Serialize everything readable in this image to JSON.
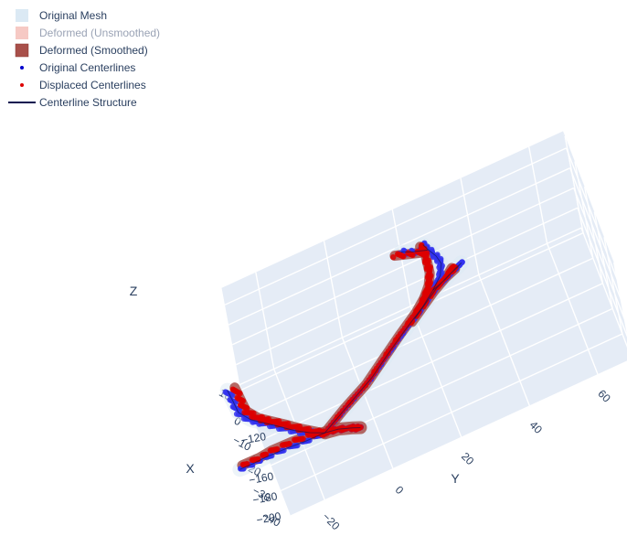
{
  "chart_data": {
    "type": "scatter3d",
    "legend": {
      "placement": "top-left",
      "entries": [
        {
          "name": "Original Mesh",
          "color": "#dbe9f4",
          "symbol": "square",
          "dimmed": false
        },
        {
          "name": "Deformed (Unsmoothed)",
          "color": "#f6c9c4",
          "symbol": "square",
          "dimmed": true
        },
        {
          "name": "Deformed (Smoothed)",
          "color": "#a8504a",
          "symbol": "square",
          "dimmed": false
        },
        {
          "name": "Original Centerlines",
          "color": "#0000cc",
          "symbol": "dot",
          "dimmed": false
        },
        {
          "name": "Displaced Centerlines",
          "color": "#dd0000",
          "symbol": "dot",
          "dimmed": false
        },
        {
          "name": "Centerline Structure",
          "color": "#0a1450",
          "symbol": "line",
          "dimmed": false
        }
      ]
    },
    "axes": {
      "x": {
        "title": "X",
        "ticks": [
          "−40",
          "−30",
          "−20",
          "−10",
          "0",
          "10"
        ]
      },
      "y": {
        "title": "Y",
        "ticks": [
          "−20",
          "0",
          "20",
          "40",
          "60"
        ]
      },
      "z": {
        "title": "Z",
        "ticks": [
          "−120",
          "−140",
          "−160",
          "−180",
          "−200"
        ]
      }
    },
    "scene": {
      "background": "#e5ecf6",
      "grid": true
    },
    "series": [
      {
        "name": "Original Centerlines",
        "color": "#3333ee",
        "branches": [
          [
            [
              -20,
              -38,
              -112
            ],
            [
              -20,
              -37,
              -125
            ],
            [
              -19,
              -36,
              -140
            ],
            [
              -19,
              -33,
              -152
            ],
            [
              -18,
              -30,
              -162
            ],
            [
              -18,
              -26,
              -172
            ],
            [
              -19,
              -22,
              -180
            ],
            [
              -20,
              -18,
              -186
            ],
            [
              -21,
              -14,
              -190
            ]
          ],
          [
            [
              -21,
              -14,
              -190
            ],
            [
              -23,
              -20,
              -184
            ],
            [
              -25,
              -26,
              -177
            ],
            [
              -27,
              -32,
              -171
            ],
            [
              -29,
              -36,
              -166
            ],
            [
              -30,
              -40,
              -163
            ]
          ],
          [
            [
              -21,
              -14,
              -190
            ],
            [
              -20,
              -10,
              -195
            ],
            [
              -20,
              -6,
              -200
            ],
            [
              -20,
              -4,
              -203
            ]
          ],
          [
            [
              -21,
              -14,
              -190
            ],
            [
              -19,
              -6,
              -180
            ],
            [
              -17,
              2,
              -170
            ],
            [
              -15,
              8,
              -160
            ],
            [
              -13,
              14,
              -151
            ],
            [
              -11,
              20,
              -143
            ],
            [
              -9,
              24,
              -137
            ],
            [
              -7,
              27,
              -132
            ],
            [
              -6,
              28,
              -124
            ],
            [
              -6,
              27,
              -115
            ],
            [
              -6,
              25,
              -105
            ],
            [
              -6,
              24,
              -99
            ]
          ],
          [
            [
              -9,
              24,
              -137
            ],
            [
              -7,
              28,
              -138
            ],
            [
              -4,
              32,
              -140
            ],
            [
              -2,
              34,
              -143
            ],
            [
              -1,
              33,
              -148
            ],
            [
              -1,
              30,
              -152
            ],
            [
              -2,
              26,
              -156
            ],
            [
              -4,
              22,
              -160
            ],
            [
              -6,
              18,
              -164
            ]
          ],
          [
            [
              -6,
              25,
              -106
            ],
            [
              -5,
              21,
              -104
            ],
            [
              -4,
              18,
              -102
            ]
          ]
        ]
      },
      {
        "name": "Displaced Centerlines",
        "color": "#dd0000",
        "branches": [
          [
            [
              -21,
              -36,
              -110
            ],
            [
              -21,
              -35,
              -124
            ],
            [
              -20,
              -34,
              -139
            ],
            [
              -20,
              -31,
              -151
            ],
            [
              -19,
              -28,
              -161
            ],
            [
              -19,
              -24,
              -171
            ],
            [
              -20,
              -20,
              -179
            ],
            [
              -21,
              -16,
              -186
            ],
            [
              -21,
              -14,
              -190
            ]
          ],
          [
            [
              -21,
              -14,
              -190
            ],
            [
              -22,
              -18,
              -183
            ],
            [
              -24,
              -24,
              -176
            ],
            [
              -26,
              -30,
              -170
            ],
            [
              -28,
              -34,
              -166
            ],
            [
              -29,
              -39,
              -163
            ]
          ],
          [
            [
              -21,
              -14,
              -190
            ],
            [
              -20,
              -10,
              -195
            ],
            [
              -20,
              -6,
              -200
            ],
            [
              -20,
              -4,
              -203
            ]
          ],
          [
            [
              -21,
              -14,
              -190
            ],
            [
              -19,
              -7,
              -181
            ],
            [
              -18,
              0,
              -171
            ],
            [
              -16,
              6,
              -161
            ],
            [
              -14,
              12,
              -151
            ],
            [
              -12,
              18,
              -142
            ],
            [
              -11,
              21,
              -135
            ],
            [
              -10,
              23,
              -128
            ],
            [
              -9,
              24,
              -120
            ],
            [
              -8,
              24,
              -111
            ],
            [
              -7,
              24,
              -103
            ],
            [
              -7,
              23,
              -97
            ]
          ],
          [
            [
              -11,
              21,
              -135
            ],
            [
              -9,
              25,
              -136
            ],
            [
              -6,
              29,
              -138
            ],
            [
              -3,
              31,
              -141
            ],
            [
              -2,
              32,
              -146
            ],
            [
              -2,
              29,
              -150
            ],
            [
              -3,
              25,
              -155
            ],
            [
              -5,
              21,
              -159
            ],
            [
              -7,
              17,
              -163
            ]
          ],
          [
            [
              -7,
              24,
              -104
            ],
            [
              -6,
              20,
              -102
            ],
            [
              -5,
              16,
              -100
            ]
          ]
        ]
      }
    ]
  }
}
